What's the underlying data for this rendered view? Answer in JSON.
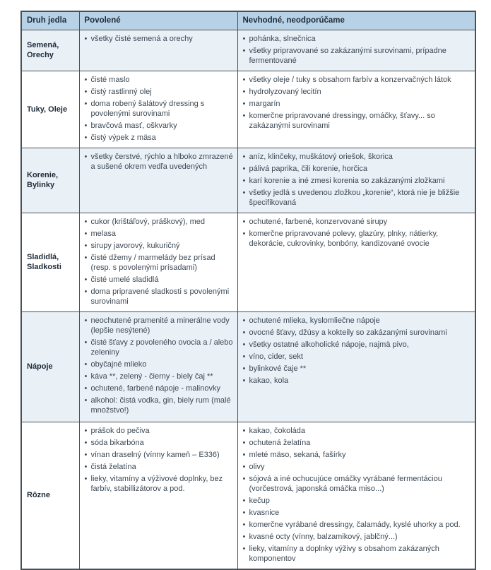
{
  "colors": {
    "header_bg": "#b7d2e6",
    "row_alt_bg": "#e9f0f6",
    "border": "#4a5055",
    "text": "#3d4954",
    "heading_text": "#1f2c39"
  },
  "table": {
    "headers": [
      "Druh jedla",
      "Povolené",
      "Nevhodné, neodporúčame"
    ],
    "rows": [
      {
        "category": "Semená, Orechy",
        "allowed": [
          "všetky čisté semená a orechy"
        ],
        "not_recommended": [
          "pohánka, slnečnica",
          "všetky pripravované so zakázanými surovinami, prípadne fermentované"
        ]
      },
      {
        "category": "Tuky, Oleje",
        "allowed": [
          "čisté maslo",
          "čistý rastlinný olej",
          "doma robený šalátový dressing s povolenými surovinami",
          "bravčová masť, oškvarky",
          "čistý výpek z mäsa"
        ],
        "not_recommended": [
          "všetky oleje / tuky s obsahom farbív a konzervačných látok",
          "hydrolyzovaný lecitín",
          "margarín",
          "komerčne pripravované dressingy, omáčky, šťavy... so zakázanými surovinami"
        ]
      },
      {
        "category": "Korenie, Bylinky",
        "allowed": [
          "všetky čerstvé, rýchlo a hlboko zmrazené a sušené okrem vedľa uvedených"
        ],
        "not_recommended": [
          "aníz, klinčeky, muškátový oriešok, škorica",
          "pálivá paprika, čili korenie, horčica",
          "karí korenie a iné zmesi korenia so zakázanými zložkami",
          "všetky jedlá s uvedenou zložkou „korenie“, ktorá nie je bližšie špecifikovaná"
        ]
      },
      {
        "category": "Sladidlá, Sladkosti",
        "allowed": [
          "cukor (krištáľový, práškový), med",
          "melasa",
          "sirupy javorový, kukuričný",
          "čisté džemy / marmelády bez prísad (resp. s povolenými prísadami)",
          "čisté umelé sladidlá",
          "doma pripravené sladkosti s povolenými surovinami"
        ],
        "not_recommended": [
          "ochutené, farbené, konzervované sirupy",
          "komerčne pripravované polevy, glazúry, plnky, nátierky, dekorácie, cukrovinky, bonbóny, kandizované ovocie"
        ]
      },
      {
        "category": "Nápoje",
        "allowed": [
          "neochutené pramenité a minerálne vody (lepšie nesýtené)",
          "čisté šťavy z povoleného ovocia a / alebo zeleniny",
          "obyčajné mlieko",
          "káva **, zelený - čierny - biely čaj **",
          "ochutené, farbené nápoje - malinovky",
          "alkohol: čistá vodka, gin, biely rum (malé množstvo!)"
        ],
        "not_recommended": [
          "ochutené mlieka, kyslomliečne nápoje",
          "ovocné šťavy, džúsy a kokteily so zakázanými surovinami",
          "všetky ostatné alkoholické nápoje, najmä pivo,",
          "víno, cider, sekt",
          "bylinkové čaje **",
          "kakao, kola"
        ]
      },
      {
        "category": "Rôzne",
        "allowed": [
          "prášok do pečiva",
          "sóda bikarbóna",
          "vínan draselný (vínny kameň – E336)",
          "čistá želatína",
          "lieky, vitamíny a výživové doplnky, bez farbív,  stabillizátorov a pod."
        ],
        "not_recommended": [
          "kakao, čokoláda",
          "ochutená želatína",
          "mleté mäso, sekaná, fašírky",
          "olivy",
          "sójová a iné ochucujúce omáčky vyrábané fermentáciou (vorčestrová, japonská omáčka miso...)",
          "kečup",
          "kvasnice",
          "komerčne vyrábané dressingy, čalamády, kyslé uhorky a pod.",
          "kvasné octy (vínny, balzamikový, jablčný...)",
          "lieky, vitamíny a doplnky výživy s obsahom zakázaných komponentov"
        ]
      }
    ]
  }
}
